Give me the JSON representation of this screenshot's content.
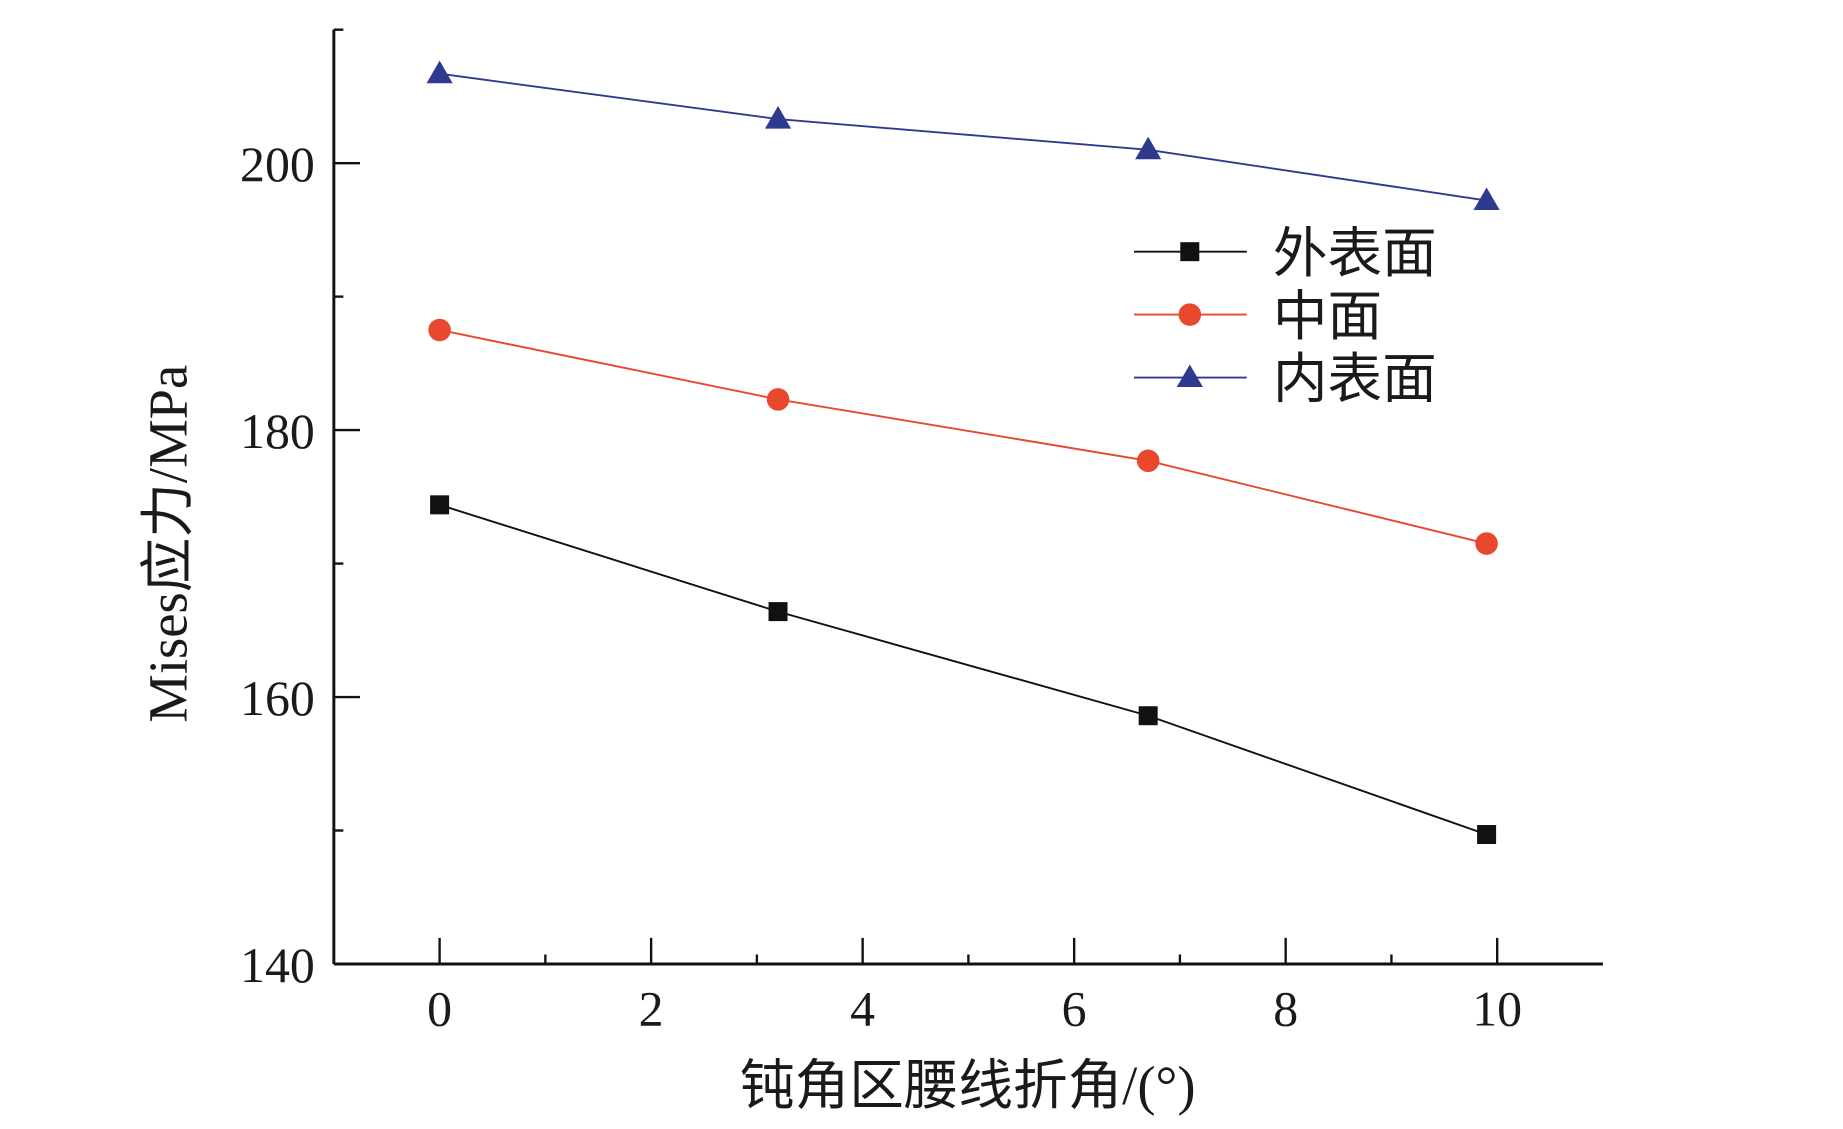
{
  "chart_data": {
    "type": "line",
    "title": "",
    "xlabel": "钝角区腰线折角/(°)",
    "ylabel": "Mises应力/MPa",
    "xlim": [
      -1,
      11
    ],
    "ylim": [
      140,
      210
    ],
    "xticks": [
      0,
      2,
      4,
      6,
      8,
      10
    ],
    "yticks": [
      140,
      160,
      180,
      200
    ],
    "grid": false,
    "legend_position": "top-right",
    "x": [
      0,
      3.2,
      6.7,
      9.9
    ],
    "series": [
      {
        "name": "外表面",
        "marker": "square",
        "color": "#111111",
        "values": [
          174.4,
          166.4,
          158.6,
          149.7
        ]
      },
      {
        "name": "中面",
        "marker": "circle",
        "color": "#e8482e",
        "values": [
          187.5,
          182.3,
          177.7,
          171.5
        ]
      },
      {
        "name": "内表面",
        "marker": "triangle",
        "color": "#2e3a8c",
        "values": [
          206.7,
          203.3,
          201.0,
          197.2
        ]
      }
    ]
  }
}
